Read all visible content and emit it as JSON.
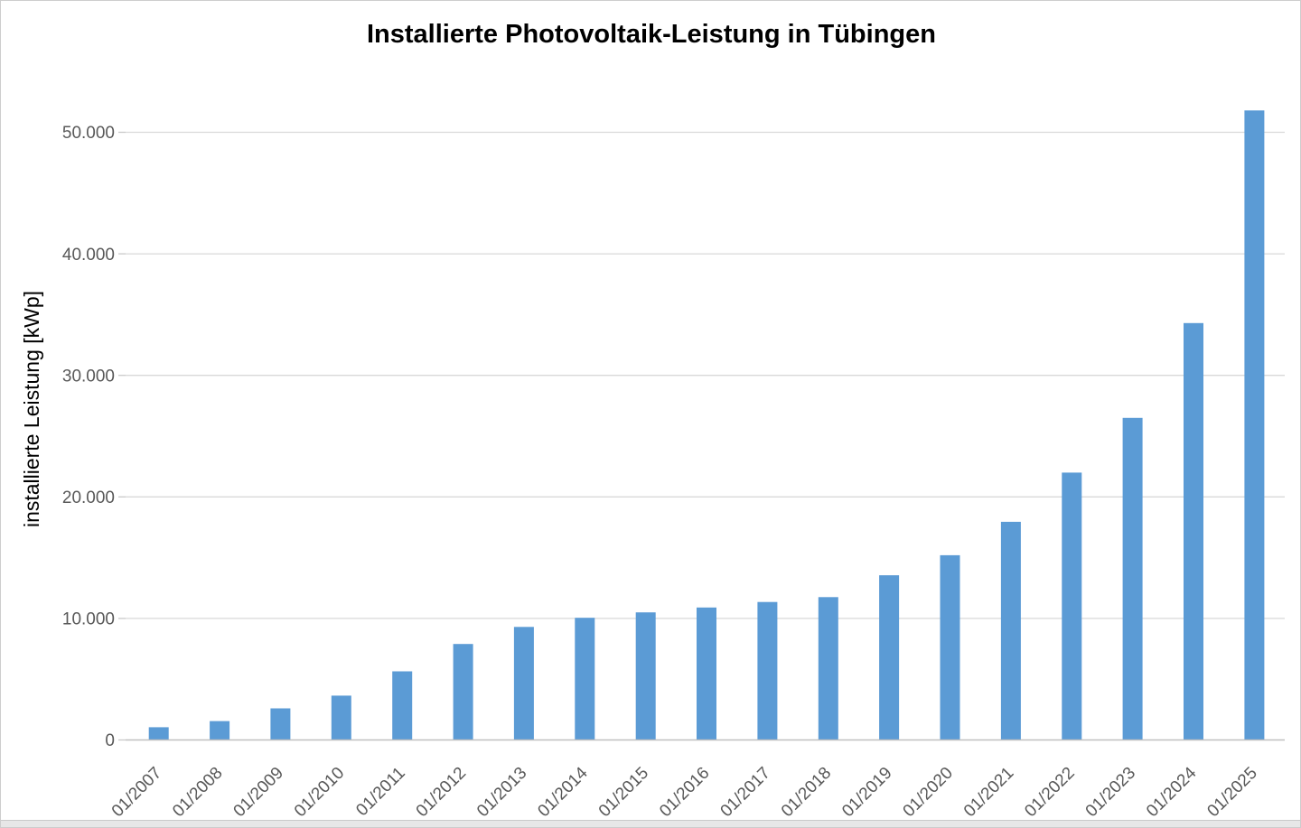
{
  "chart": {
    "title": "Installierte Photovoltaik-Leistung in Tübingen",
    "ylabel": "installierte Leistung [kWp]"
  },
  "chart_data": {
    "type": "bar",
    "title": "Installierte Photovoltaik-Leistung in Tübingen",
    "xlabel": "",
    "ylabel": "installierte Leistung [kWp]",
    "categories": [
      "01/2007",
      "01/2008",
      "01/2009",
      "01/2010",
      "01/2011",
      "01/2012",
      "01/2013",
      "01/2014",
      "01/2015",
      "01/2016",
      "01/2017",
      "01/2018",
      "01/2019",
      "01/2020",
      "01/2021",
      "01/2022",
      "01/2023",
      "01/2024",
      "01/2025"
    ],
    "values": [
      1050,
      1550,
      2600,
      3650,
      5650,
      7900,
      9300,
      10050,
      10500,
      10900,
      11350,
      11750,
      13550,
      15200,
      17950,
      22000,
      26500,
      34300,
      51800
    ],
    "ylim": [
      0,
      55000
    ],
    "yticks": [
      0,
      10000,
      20000,
      30000,
      40000,
      50000
    ],
    "ytick_labels": [
      "0",
      "10.000",
      "20.000",
      "30.000",
      "40.000",
      "50.000"
    ],
    "grid": true,
    "legend": false,
    "bar_color": "#5b9bd5",
    "gridline_color": "#d9d9d9",
    "axis_line_color": "#bfbfbf",
    "tick_color": "#c9c9c9",
    "text_color": "#595959"
  }
}
